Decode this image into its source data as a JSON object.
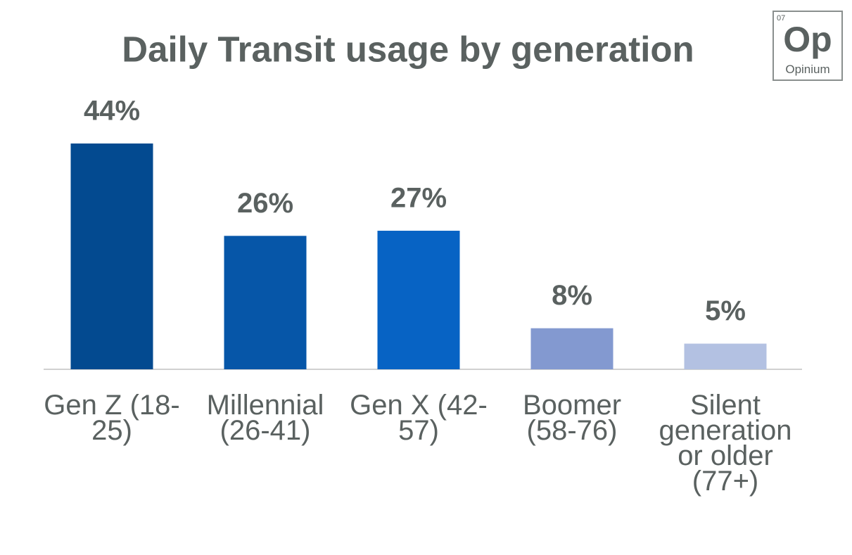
{
  "chart_data": {
    "type": "bar",
    "title": "Daily Transit usage by generation",
    "categories": [
      "Gen Z (18-25)",
      "Millennial (26-41)",
      "Gen X (42-57)",
      "Boomer (58-76)",
      "Silent generation or older (77+)"
    ],
    "values": [
      44,
      26,
      27,
      8,
      5
    ],
    "value_labels": [
      "44%",
      "26%",
      "27%",
      "8%",
      "5%"
    ],
    "colors": [
      "#034a90",
      "#0656a8",
      "#0763c4",
      "#8399d0",
      "#b3c1e2"
    ]
  },
  "logo": {
    "number": "07",
    "symbol": "Op",
    "name": "Opinium"
  }
}
